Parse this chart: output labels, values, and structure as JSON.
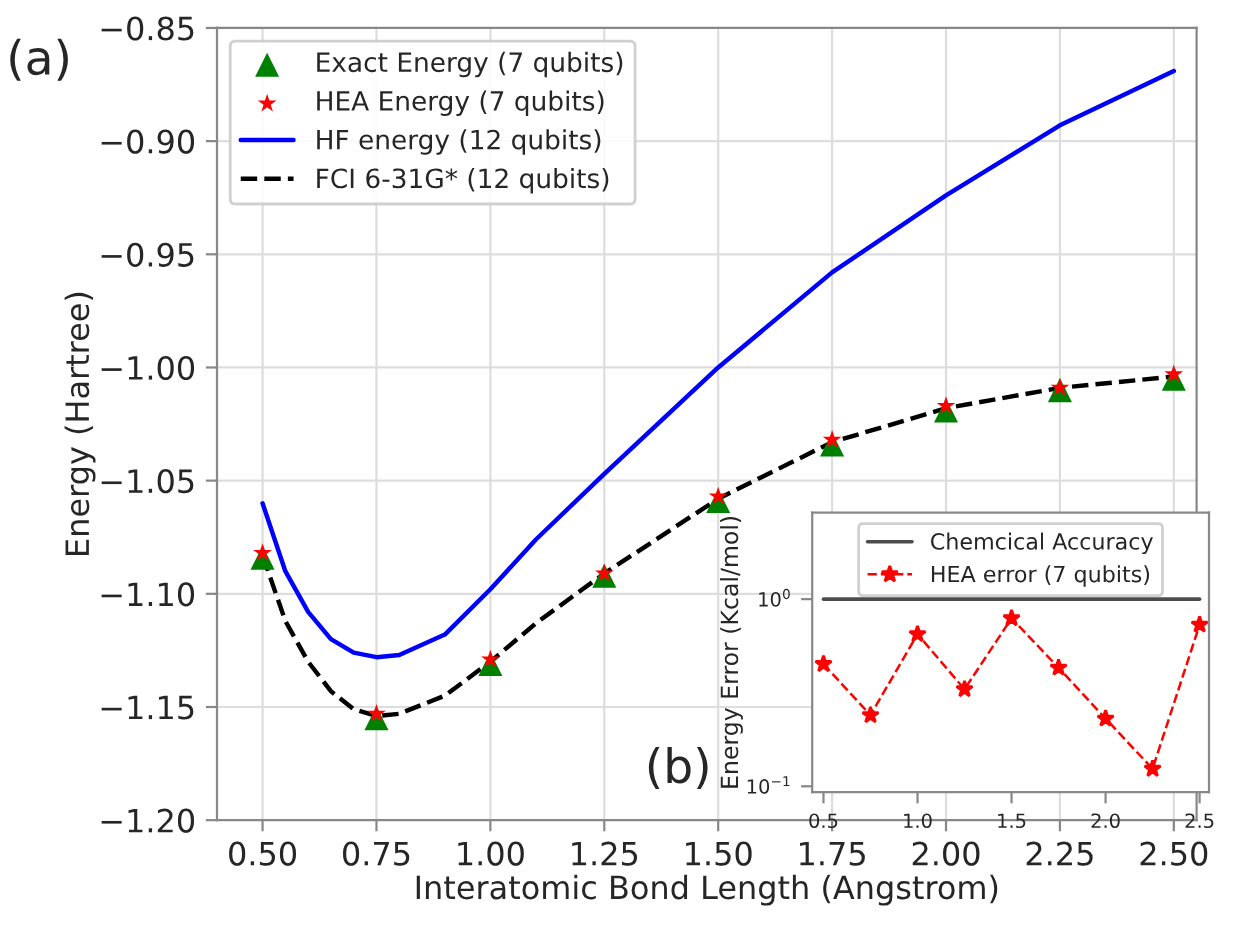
{
  "chart_data": [
    {
      "type": "line",
      "xlabel": "Interatomic Bond Length (Angstrom)",
      "ylabel": "Energy (Hartree)",
      "xlim": [
        0.4,
        2.55
      ],
      "ylim": [
        -1.2,
        -0.85
      ],
      "xticks": [
        {
          "value": 0.5,
          "label": "0.50"
        },
        {
          "value": 0.75,
          "label": "0.75"
        },
        {
          "value": 1.0,
          "label": "1.00"
        },
        {
          "value": 1.25,
          "label": "1.25"
        },
        {
          "value": 1.5,
          "label": "1.50"
        },
        {
          "value": 1.75,
          "label": "1.75"
        },
        {
          "value": 2.0,
          "label": "2.00"
        },
        {
          "value": 2.25,
          "label": "2.25"
        },
        {
          "value": 2.5,
          "label": "2.50"
        }
      ],
      "yticks": [
        {
          "value": -1.2,
          "label": "−1.20"
        },
        {
          "value": -1.15,
          "label": "−1.15"
        },
        {
          "value": -1.1,
          "label": "−1.10"
        },
        {
          "value": -1.05,
          "label": "−1.05"
        },
        {
          "value": -1.0,
          "label": "−1.00"
        },
        {
          "value": -0.95,
          "label": "−0.95"
        },
        {
          "value": -0.9,
          "label": "−0.90"
        },
        {
          "value": -0.85,
          "label": "−0.85"
        }
      ],
      "grid": true,
      "legend": "top left",
      "annotations": [
        "(a)"
      ],
      "series": [
        {
          "name": "Exact Energy (7 qubits)",
          "type": "scatter",
          "marker": "triangle",
          "color": "#008000",
          "x": [
            0.5,
            0.75,
            1.0,
            1.25,
            1.5,
            1.75,
            2.0,
            2.25,
            2.5
          ],
          "values": [
            -1.084,
            -1.155,
            -1.131,
            -1.092,
            -1.059,
            -1.034,
            -1.019,
            -1.01,
            -1.005
          ]
        },
        {
          "name": "HEA Energy (7 qubits)",
          "type": "scatter",
          "marker": "star",
          "color": "#ff0000",
          "x": [
            0.5,
            0.75,
            1.0,
            1.25,
            1.5,
            1.75,
            2.0,
            2.25,
            2.5
          ],
          "values": [
            -1.082,
            -1.153,
            -1.129,
            -1.091,
            -1.057,
            -1.032,
            -1.017,
            -1.009,
            -1.003
          ]
        },
        {
          "name": "HF energy (12 qubits)",
          "line_style": "solid",
          "color": "#0000ff",
          "x": [
            0.5,
            0.55,
            0.6,
            0.65,
            0.7,
            0.75,
            0.8,
            0.9,
            1.0,
            1.1,
            1.25,
            1.5,
            1.75,
            2.0,
            2.25,
            2.5
          ],
          "values": [
            -1.06,
            -1.09,
            -1.108,
            -1.12,
            -1.126,
            -1.128,
            -1.127,
            -1.118,
            -1.098,
            -1.076,
            -1.047,
            -1.0,
            -0.958,
            -0.924,
            -0.893,
            -0.869
          ]
        },
        {
          "name": "FCI 6-31G* (12 qubits)",
          "line_style": "dashed",
          "color": "#000000",
          "x": [
            0.5,
            0.55,
            0.6,
            0.65,
            0.7,
            0.75,
            0.8,
            0.9,
            1.0,
            1.1,
            1.25,
            1.5,
            1.75,
            2.0,
            2.25,
            2.5
          ],
          "values": [
            -1.083,
            -1.112,
            -1.13,
            -1.143,
            -1.151,
            -1.154,
            -1.153,
            -1.145,
            -1.13,
            -1.113,
            -1.091,
            -1.058,
            -1.033,
            -1.018,
            -1.009,
            -1.004
          ]
        }
      ]
    },
    {
      "type": "line",
      "ylabel": "Energy Error (Kcal/mol)",
      "log": "y",
      "xlim": [
        0.44,
        2.55
      ],
      "ylim": [
        0.093,
        2.9
      ],
      "xticks": [
        {
          "value": 0.5,
          "label": "0.5"
        },
        {
          "value": 1.0,
          "label": "1.0"
        },
        {
          "value": 1.5,
          "label": "1.5"
        },
        {
          "value": 2.0,
          "label": "2.0"
        },
        {
          "value": 2.5,
          "label": "2.5"
        }
      ],
      "yticks": [
        {
          "value": 0.1,
          "label": "10$^{−1}$"
        },
        {
          "value": 1,
          "label": "10$^{0}$"
        }
      ],
      "legend": "top",
      "annotations": [
        "(b)"
      ],
      "series": [
        {
          "name": "Chemcical Accuracy",
          "line_style": "solid",
          "color": "#4d4d4d",
          "x": [
            0.5,
            2.5
          ],
          "values": [
            1,
            1
          ]
        },
        {
          "name": "HEA error (7 qubits)",
          "line_style": "dashed",
          "marker": "star",
          "color": "#ff0000",
          "x": [
            0.5,
            0.75,
            1.0,
            1.25,
            1.5,
            1.75,
            2.0,
            2.25,
            2.5
          ],
          "values": [
            0.45,
            0.24,
            0.65,
            0.33,
            0.79,
            0.43,
            0.23,
            0.124,
            0.73
          ]
        }
      ]
    }
  ]
}
